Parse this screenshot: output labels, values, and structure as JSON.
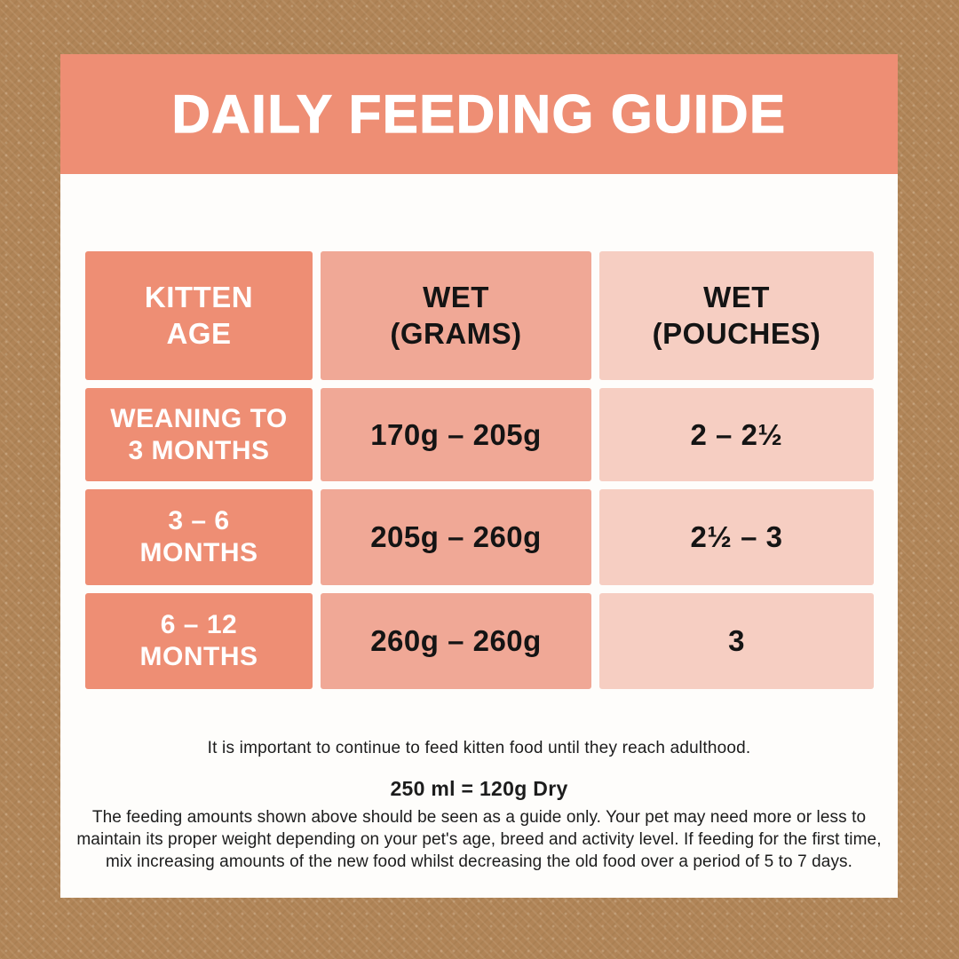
{
  "theme": {
    "background_tan": "#B08457",
    "card_white": "#FEFDFB",
    "salmon_dark": "#EE8E74",
    "salmon_mid": "#F0A896",
    "salmon_light": "#F6CEC2",
    "text_dark": "#1C1C1C",
    "text_white": "#FFFFFF"
  },
  "banner": {
    "title": "DAILY FEEDING GUIDE"
  },
  "table": {
    "columns": [
      {
        "line1": "KITTEN",
        "line2": "AGE"
      },
      {
        "line1": "WET",
        "line2": "(GRAMS)"
      },
      {
        "line1": "WET",
        "line2": "(POUCHES)"
      }
    ],
    "rows": [
      {
        "age_line1": "WEANING TO",
        "age_line2": "3 MONTHS",
        "wet_grams": "170g – 205g",
        "wet_pouches": "2 – 2½"
      },
      {
        "age_line1": "3 – 6",
        "age_line2": "MONTHS",
        "wet_grams": "205g – 260g",
        "wet_pouches": "2½ – 3"
      },
      {
        "age_line1": "6 – 12",
        "age_line2": "MONTHS",
        "wet_grams": "260g – 260g",
        "wet_pouches": "3"
      }
    ]
  },
  "footer": {
    "note": "It is important to continue to feed kitten food until they reach adulthood.",
    "conversion": "250 ml = 120g Dry",
    "disclaimer_lines": [
      "The feeding amounts shown above should be seen as a guide only. Your pet may need more or less to",
      "maintain its proper weight depending on your pet's age, breed and activity level. If feeding for the first time,",
      "mix increasing amounts of the new food whilst decreasing the old food over a period of 5 to 7 days."
    ]
  },
  "chart_data": {
    "type": "table",
    "title": "DAILY FEEDING GUIDE",
    "columns": [
      "KITTEN AGE",
      "WET (GRAMS)",
      "WET (POUCHES)"
    ],
    "rows": [
      [
        "WEANING TO 3 MONTHS",
        "170g – 205g",
        "2 – 2½"
      ],
      [
        "3 – 6 MONTHS",
        "205g – 260g",
        "2½ – 3"
      ],
      [
        "6 – 12 MONTHS",
        "260g – 260g",
        "3"
      ]
    ],
    "notes": [
      "It is important to continue to feed kitten food until they reach adulthood.",
      "250 ml = 120g Dry",
      "The feeding amounts shown above should be seen as a guide only. Your pet may need more or less to maintain its proper weight depending on your pet's age, breed and activity level. If feeding for the first time, mix increasing amounts of the new food whilst decreasing the old food over a period of 5 to 7 days."
    ]
  }
}
